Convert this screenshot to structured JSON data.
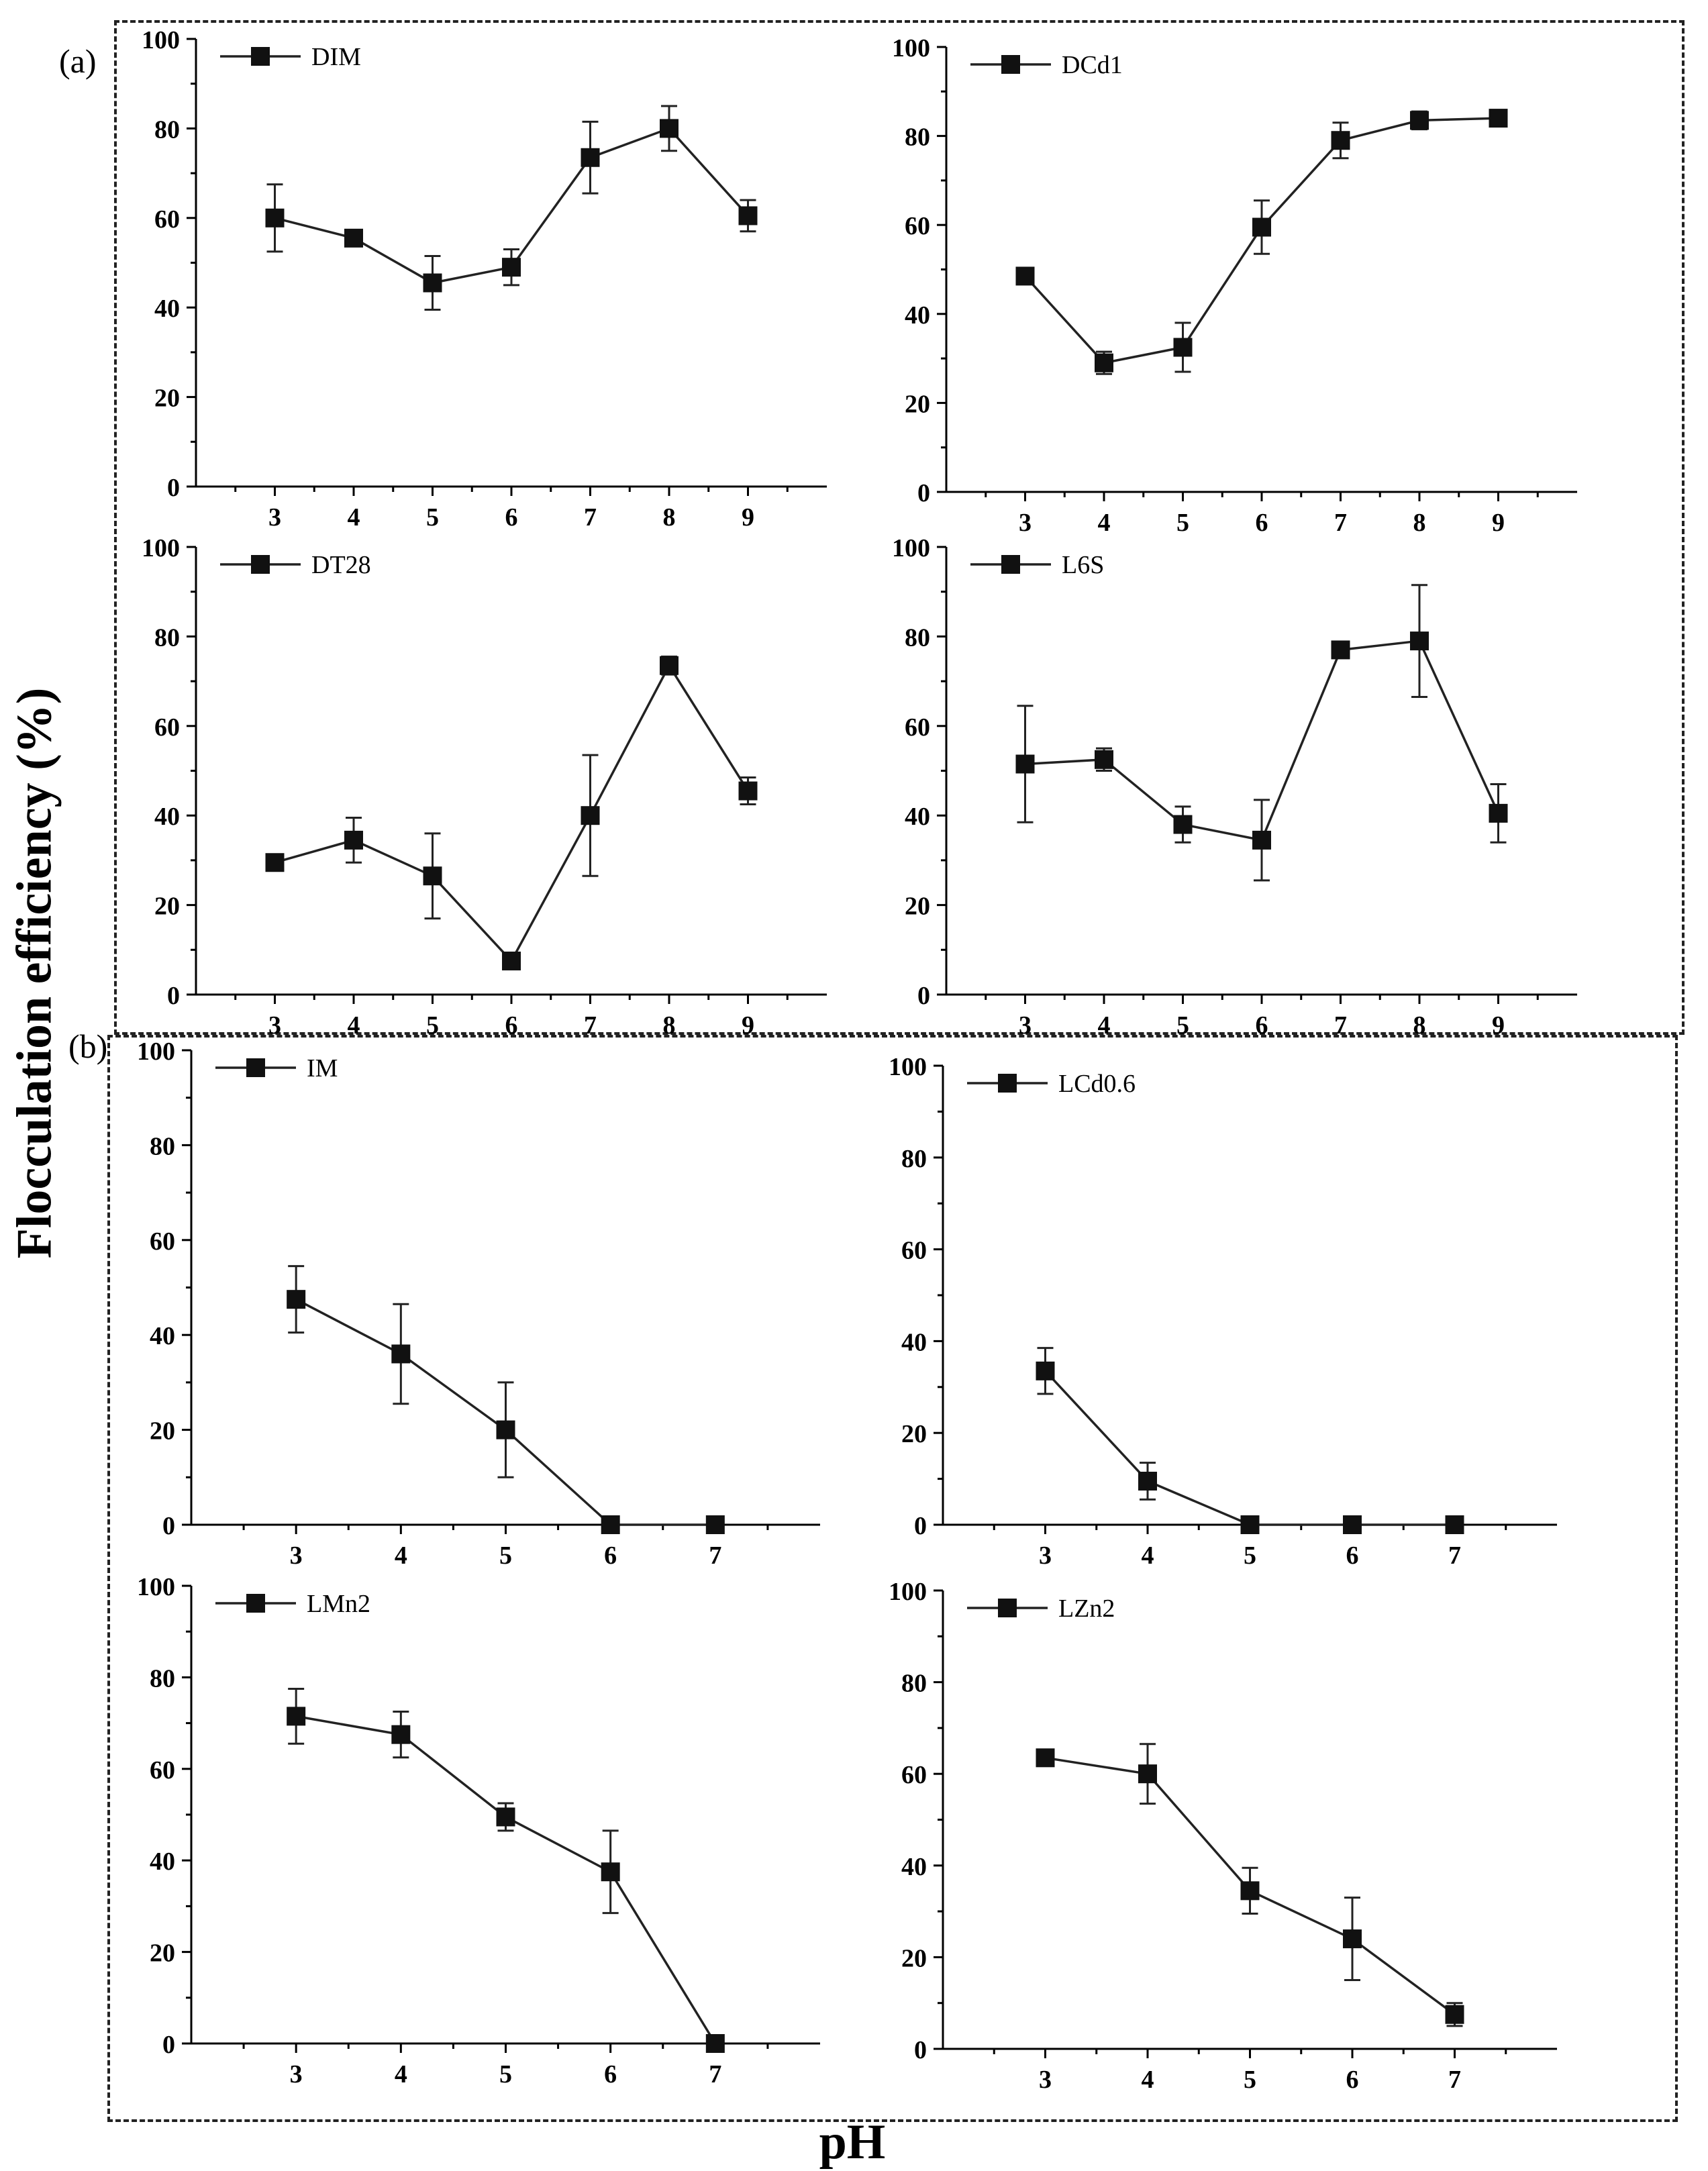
{
  "figure": {
    "ylabel": "Flocculation efficiency (%)",
    "xlabel": "pH",
    "panel_a_label": "(a)",
    "panel_b_label": "(b)"
  },
  "colors": {
    "line": "#222222",
    "marker": "#111111"
  },
  "chart_data": [
    {
      "type": "line",
      "title": "",
      "legend": "DIM",
      "xlabel": "pH",
      "ylabel": "Flocculation efficiency (%)",
      "x": [
        3,
        4,
        5,
        6,
        7,
        8,
        9
      ],
      "y": [
        60,
        55.5,
        45.5,
        49,
        73.5,
        80,
        60.5
      ],
      "err": [
        7.5,
        1.5,
        6,
        4,
        8,
        5,
        3.5
      ],
      "xticks": [
        3,
        4,
        5,
        6,
        7,
        8,
        9
      ],
      "xlim": [
        2,
        10
      ],
      "yticks": [
        0,
        20,
        40,
        60,
        80,
        100
      ],
      "ylim": [
        0,
        100
      ]
    },
    {
      "type": "line",
      "title": "",
      "legend": "DCd1",
      "xlabel": "pH",
      "ylabel": "Flocculation efficiency (%)",
      "x": [
        3,
        4,
        5,
        6,
        7,
        8,
        9
      ],
      "y": [
        48.5,
        29,
        32.5,
        59.5,
        79,
        83.5,
        84
      ],
      "err": [
        0.5,
        2.5,
        5.5,
        6,
        4,
        2,
        1
      ],
      "xticks": [
        3,
        4,
        5,
        6,
        7,
        8,
        9
      ],
      "xlim": [
        2,
        10
      ],
      "yticks": [
        0,
        20,
        40,
        60,
        80,
        100
      ],
      "ylim": [
        0,
        100
      ]
    },
    {
      "type": "line",
      "title": "",
      "legend": "DT28",
      "xlabel": "pH",
      "ylabel": "Flocculation efficiency (%)",
      "x": [
        3,
        4,
        5,
        6,
        7,
        8,
        9
      ],
      "y": [
        29.5,
        34.5,
        26.5,
        7.5,
        40,
        73.5,
        45.5
      ],
      "err": [
        0.5,
        5,
        9.5,
        0.5,
        13.5,
        2,
        3
      ],
      "xticks": [
        3,
        4,
        5,
        6,
        7,
        8,
        9
      ],
      "xlim": [
        2,
        10
      ],
      "yticks": [
        0,
        20,
        40,
        60,
        80,
        100
      ],
      "ylim": [
        0,
        100
      ]
    },
    {
      "type": "line",
      "title": "",
      "legend": "L6S",
      "xlabel": "pH",
      "ylabel": "Flocculation efficiency (%)",
      "x": [
        3,
        4,
        5,
        6,
        7,
        8,
        9
      ],
      "y": [
        51.5,
        52.5,
        38,
        34.5,
        77,
        79,
        40.5
      ],
      "err": [
        13,
        2.5,
        4,
        9,
        1.5,
        12.5,
        6.5
      ],
      "xticks": [
        3,
        4,
        5,
        6,
        7,
        8,
        9
      ],
      "xlim": [
        2,
        10
      ],
      "yticks": [
        0,
        20,
        40,
        60,
        80,
        100
      ],
      "ylim": [
        0,
        100
      ]
    },
    {
      "type": "line",
      "title": "",
      "legend": "IM",
      "xlabel": "pH",
      "ylabel": "Flocculation efficiency (%)",
      "x": [
        3,
        4,
        5,
        6,
        7
      ],
      "y": [
        47.5,
        36,
        20,
        0,
        0
      ],
      "err": [
        7,
        10.5,
        10,
        0.3,
        0.3
      ],
      "xticks": [
        3,
        4,
        5,
        6,
        7
      ],
      "xlim": [
        2,
        8
      ],
      "yticks": [
        0,
        20,
        40,
        60,
        80,
        100
      ],
      "ylim": [
        0,
        100
      ]
    },
    {
      "type": "line",
      "title": "",
      "legend": "LCd0.6",
      "xlabel": "pH",
      "ylabel": "Flocculation efficiency (%)",
      "x": [
        3,
        4,
        5,
        6,
        7
      ],
      "y": [
        33.5,
        9.5,
        0,
        0,
        0
      ],
      "err": [
        5,
        4,
        0.3,
        0.3,
        0.3
      ],
      "xticks": [
        3,
        4,
        5,
        6,
        7
      ],
      "xlim": [
        2,
        8
      ],
      "yticks": [
        0,
        20,
        40,
        60,
        80,
        100
      ],
      "ylim": [
        0,
        100
      ]
    },
    {
      "type": "line",
      "title": "",
      "legend": "LMn2",
      "xlabel": "pH",
      "ylabel": "Flocculation efficiency (%)",
      "x": [
        3,
        4,
        5,
        6,
        7
      ],
      "y": [
        71.5,
        67.5,
        49.5,
        37.5,
        0
      ],
      "err": [
        6,
        5,
        3,
        9,
        0.3
      ],
      "xticks": [
        3,
        4,
        5,
        6,
        7
      ],
      "xlim": [
        2,
        8
      ],
      "yticks": [
        0,
        20,
        40,
        60,
        80,
        100
      ],
      "ylim": [
        0,
        100
      ]
    },
    {
      "type": "line",
      "title": "",
      "legend": "LZn2",
      "xlabel": "pH",
      "ylabel": "Flocculation efficiency (%)",
      "x": [
        3,
        4,
        5,
        6,
        7
      ],
      "y": [
        63.5,
        60,
        34.5,
        24,
        7.5
      ],
      "err": [
        1,
        6.5,
        5,
        9,
        2.5
      ],
      "xticks": [
        3,
        4,
        5,
        6,
        7
      ],
      "xlim": [
        2,
        8
      ],
      "yticks": [
        0,
        20,
        40,
        60,
        80,
        100
      ],
      "ylim": [
        0,
        100
      ]
    }
  ]
}
